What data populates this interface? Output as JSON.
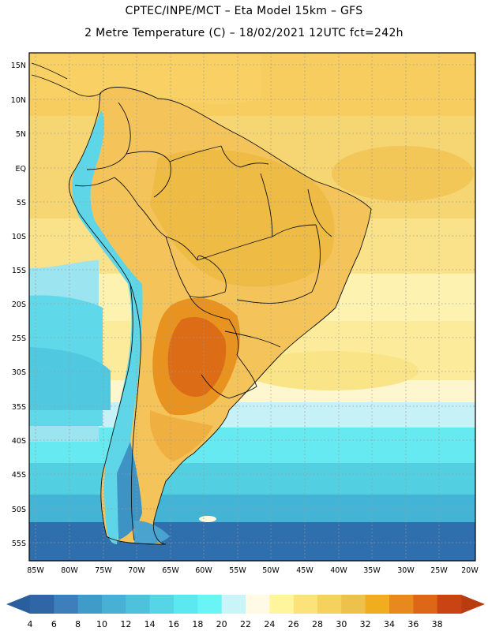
{
  "header": {
    "line1": "CPTEC/INPE/MCT –  Eta Model 15km – GFS",
    "line2": "2 Metre Temperature (C) – 18/02/2021 12UTC fct=242h"
  },
  "axes": {
    "lat_labels": [
      "15N",
      "10N",
      "5N",
      "EQ",
      "5S",
      "10S",
      "15S",
      "20S",
      "25S",
      "30S",
      "35S",
      "40S",
      "45S",
      "50S",
      "55S"
    ],
    "lon_labels": [
      "85W",
      "80W",
      "75W",
      "70W",
      "65W",
      "60W",
      "55W",
      "50W",
      "45W",
      "40W",
      "35W",
      "30W",
      "25W",
      "20W"
    ]
  },
  "colorbar": {
    "labels": [
      "4",
      "6",
      "8",
      "10",
      "12",
      "14",
      "16",
      "18",
      "20",
      "22",
      "24",
      "26",
      "28",
      "30",
      "32",
      "34",
      "36",
      "38"
    ],
    "colors": [
      "#2f67a6",
      "#3c7fba",
      "#3f9bc8",
      "#48b0d4",
      "#4ec2dd",
      "#55d5e6",
      "#5ce8f0",
      "#69f5f6",
      "#c9f4f8",
      "#fffae6",
      "#fff59c",
      "#fbe27a",
      "#f5d15e",
      "#eec14c",
      "#f0ad1f",
      "#e8891d",
      "#dd6617",
      "#c94412"
    ],
    "low_arrow_color": "#2a5f9e",
    "high_arrow_color": "#b83c10"
  }
}
